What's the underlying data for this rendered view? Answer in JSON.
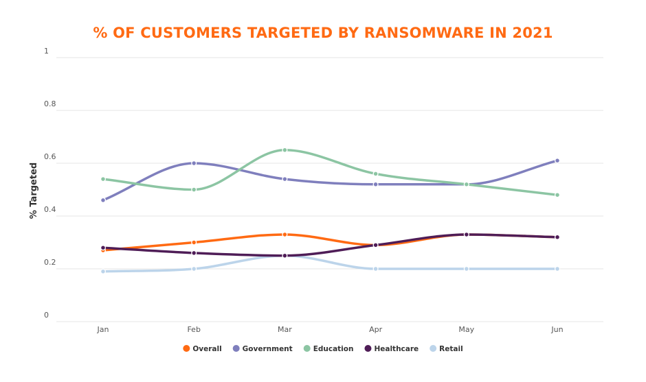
{
  "chart_data": {
    "type": "line",
    "title": "% OF CUSTOMERS TARGETED BY RANSOMWARE IN 2021",
    "xlabel": "",
    "ylabel": "% Targeted",
    "ylim": [
      0,
      1
    ],
    "y_ticks": [
      "0",
      "0.2",
      "0.4",
      "0.6",
      "0.8",
      "1"
    ],
    "y_tick_values": [
      0,
      0.2,
      0.4,
      0.6,
      0.8,
      1
    ],
    "categories": [
      "Jan",
      "Feb",
      "Mar",
      "Apr",
      "May",
      "Jun"
    ],
    "grid": true,
    "legend_position": "bottom",
    "series": [
      {
        "name": "Overall",
        "color": "#ff6a13",
        "values": [
          0.27,
          0.3,
          0.33,
          0.29,
          0.33,
          0.32
        ]
      },
      {
        "name": "Government",
        "color": "#7f7fbd",
        "values": [
          0.46,
          0.6,
          0.54,
          0.52,
          0.52,
          0.61
        ]
      },
      {
        "name": "Education",
        "color": "#8cc5a3",
        "values": [
          0.54,
          0.5,
          0.65,
          0.56,
          0.52,
          0.48
        ]
      },
      {
        "name": "Healthcare",
        "color": "#4f1d57",
        "values": [
          0.28,
          0.26,
          0.25,
          0.29,
          0.33,
          0.32
        ]
      },
      {
        "name": "Retail",
        "color": "#bcd4ea",
        "values": [
          0.19,
          0.2,
          0.25,
          0.2,
          0.2,
          0.2
        ]
      }
    ]
  }
}
